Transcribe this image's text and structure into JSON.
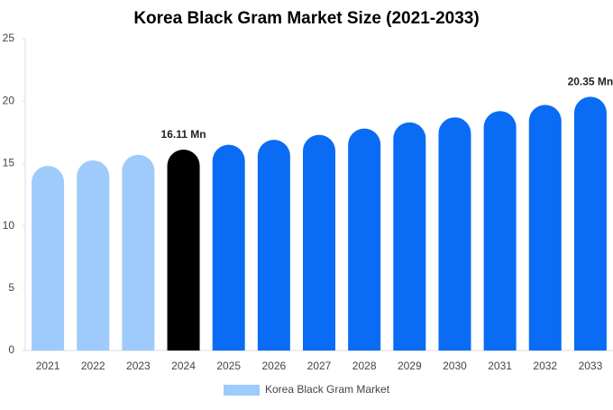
{
  "chart_data": {
    "type": "bar",
    "title": "Korea Black Gram Market Size (2021-2033)",
    "categories": [
      "2021",
      "2022",
      "2023",
      "2024",
      "2025",
      "2026",
      "2027",
      "2028",
      "2029",
      "2030",
      "2031",
      "2032",
      "2033"
    ],
    "series": [
      {
        "name": "Korea Black Gram Market",
        "color": "#9ecbfb",
        "values": [
          14.8,
          15.25,
          15.7,
          16.11,
          16.5,
          16.9,
          17.3,
          17.8,
          18.3,
          18.7,
          19.2,
          19.7,
          20.35
        ],
        "value_labels": [
          null,
          null,
          null,
          "16.11 Mn",
          null,
          null,
          null,
          null,
          null,
          null,
          null,
          null,
          "20.35 Mn"
        ],
        "colors": [
          "#9ecbfb",
          "#9ecbfb",
          "#9ecbfb",
          "#000000",
          "#0a6cf5",
          "#0a6cf5",
          "#0a6cf5",
          "#0a6cf5",
          "#0a6cf5",
          "#0a6cf5",
          "#0a6cf5",
          "#0a6cf5",
          "#0a6cf5"
        ]
      }
    ],
    "ylim": [
      0,
      25
    ],
    "yticks": [
      0,
      5,
      10,
      15,
      20,
      25
    ],
    "grid": false,
    "legend": "bottom"
  }
}
